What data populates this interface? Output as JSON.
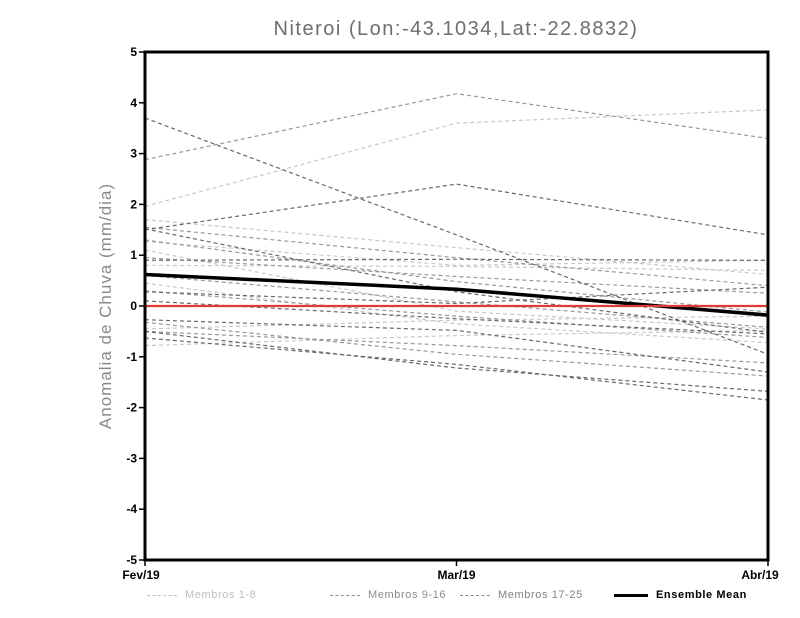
{
  "chart_data": {
    "type": "line",
    "title": "Niteroi (Lon:-43.1034,Lat:-22.8832)",
    "ylabel": "Anomalia de Chuva (mm/dia)",
    "xlabel": "",
    "x_labels": [
      "Fev/19",
      "Mar/19",
      "Abr/19"
    ],
    "ylim": [
      -5,
      5
    ],
    "y_ticks": [
      5,
      4,
      3,
      2,
      1,
      0,
      -1,
      -2,
      -3,
      -4,
      -5
    ],
    "grid": false,
    "legend_position": "bottom",
    "frame_color": "#000000",
    "zero_line": {
      "name": "zero-reference",
      "color": "#e33b33",
      "values": [
        0,
        0,
        0
      ]
    },
    "series_groups": [
      {
        "name": "Membros 1-8",
        "color": "#c9c9c9",
        "line_style": "dashed",
        "members": [
          [
            1.96,
            3.6,
            3.86
          ],
          [
            1.7,
            1.15,
            0.62
          ],
          [
            1.27,
            0.8,
            0.9
          ],
          [
            1.1,
            -0.1,
            -0.45
          ],
          [
            0.8,
            0.78,
            0.7
          ],
          [
            -0.78,
            -0.58,
            -0.48
          ],
          [
            0.45,
            -0.35,
            -0.72
          ],
          [
            -0.45,
            -0.28,
            -0.2
          ]
        ]
      },
      {
        "name": "Membros 9-16",
        "color": "#999999",
        "line_style": "dashed",
        "members": [
          [
            2.88,
            4.18,
            3.3
          ],
          [
            1.55,
            0.95,
            0.4
          ],
          [
            0.95,
            0.58,
            0.25
          ],
          [
            0.3,
            -0.2,
            -0.62
          ],
          [
            -0.5,
            -0.78,
            -1.12
          ],
          [
            1.3,
            0.48,
            -0.12
          ],
          [
            -0.32,
            -0.95,
            -1.38
          ],
          [
            0.6,
            0.08,
            -0.42
          ]
        ]
      },
      {
        "name": "Membros 17-25",
        "color": "#696969",
        "line_style": "dashed",
        "members": [
          [
            3.7,
            1.4,
            -0.95
          ],
          [
            1.5,
            2.4,
            1.4
          ],
          [
            1.52,
            0.28,
            -0.52
          ],
          [
            0.9,
            0.92,
            0.9
          ],
          [
            0.28,
            0.05,
            0.37
          ],
          [
            0.1,
            -0.25,
            -0.55
          ],
          [
            -0.27,
            -0.48,
            -1.3
          ],
          [
            -0.63,
            -1.15,
            -1.85
          ],
          [
            -0.5,
            -1.22,
            -1.68
          ]
        ]
      }
    ],
    "ensemble_mean": {
      "name": "Ensemble Mean",
      "color": "#000000",
      "line_style": "solid",
      "values": [
        0.62,
        0.33,
        -0.18
      ]
    }
  },
  "legend": {
    "items": [
      {
        "label": "Membros 1-8",
        "color": "#bfbfbf",
        "style": "dashed"
      },
      {
        "label": "Membros 9-16",
        "color": "#8c8c8c",
        "style": "dashed"
      },
      {
        "label": "Membros 17-25",
        "color": "#828282",
        "style": "dashed"
      },
      {
        "label": "Ensemble Mean",
        "color": "#000000",
        "style": "solid"
      }
    ]
  }
}
